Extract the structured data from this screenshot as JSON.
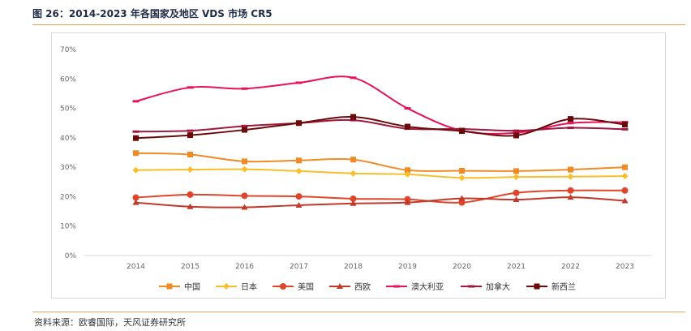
{
  "header": {
    "title": "图 26：2014-2023 年各国家及地区 VDS 市场 CR5"
  },
  "footer": {
    "source": "资料来源：欧睿国际，天风证券研究所"
  },
  "chart_data": {
    "type": "line",
    "title": "",
    "xlabel": "",
    "ylabel": "",
    "x": [
      "2014",
      "2015",
      "2016",
      "2017",
      "2018",
      "2019",
      "2020",
      "2021",
      "2022",
      "2023"
    ],
    "ylim": [
      0,
      70
    ],
    "yticks": [
      "0%",
      "10%",
      "20%",
      "30%",
      "40%",
      "50%",
      "60%",
      "70%"
    ],
    "grid": false,
    "legend": "bottom",
    "series": [
      {
        "name": "中国",
        "color": "#f08a24",
        "marker": "square",
        "values": [
          34.8,
          34.3,
          32.0,
          32.3,
          32.6,
          29.0,
          28.8,
          28.7,
          29.2,
          30.0
        ]
      },
      {
        "name": "日本",
        "color": "#f9bf2a",
        "marker": "diamond",
        "values": [
          29.0,
          29.2,
          29.3,
          28.7,
          27.9,
          27.6,
          26.4,
          26.7,
          26.8,
          27.0
        ]
      },
      {
        "name": "美国",
        "color": "#e0452a",
        "marker": "circle",
        "values": [
          19.7,
          20.7,
          20.3,
          20.1,
          19.3,
          19.1,
          18.0,
          21.3,
          22.1,
          22.1
        ]
      },
      {
        "name": "西欧",
        "color": "#c0392b",
        "marker": "triangle",
        "values": [
          18.0,
          16.6,
          16.4,
          17.1,
          17.7,
          18.0,
          19.4,
          19.0,
          19.8,
          18.6
        ]
      },
      {
        "name": "澳大利亚",
        "color": "#e8115b",
        "marker": "dash",
        "values": [
          52.4,
          57.1,
          56.7,
          58.7,
          60.4,
          50.0,
          42.4,
          41.7,
          45.0,
          45.3
        ]
      },
      {
        "name": "加拿大",
        "color": "#a1173e",
        "marker": "dash",
        "values": [
          42.1,
          42.4,
          44.0,
          45.0,
          46.0,
          43.1,
          43.0,
          42.4,
          43.4,
          42.9
        ]
      },
      {
        "name": "新西兰",
        "color": "#6b0a0a",
        "marker": "square",
        "values": [
          39.9,
          40.9,
          42.7,
          45.0,
          47.1,
          43.8,
          42.3,
          40.8,
          46.4,
          44.5
        ]
      }
    ]
  }
}
